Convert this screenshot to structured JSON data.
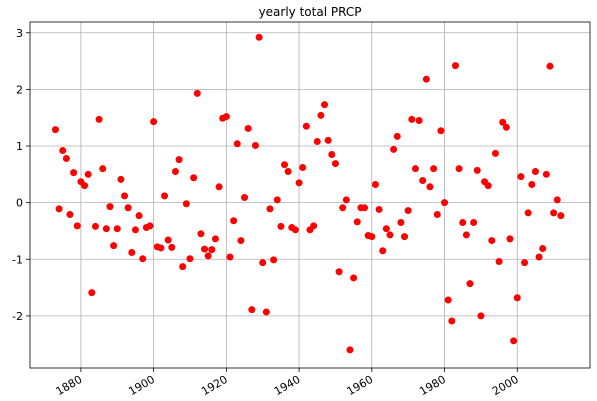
{
  "chart_data": {
    "type": "scatter",
    "title": "yearly total PRCP",
    "color": "#ff0000",
    "grid": true,
    "x": [
      1873,
      1874,
      1875,
      1876,
      1877,
      1878,
      1879,
      1880,
      1881,
      1882,
      1883,
      1884,
      1885,
      1886,
      1887,
      1888,
      1889,
      1890,
      1891,
      1892,
      1893,
      1894,
      1895,
      1896,
      1897,
      1898,
      1899,
      1900,
      1901,
      1902,
      1903,
      1904,
      1905,
      1906,
      1907,
      1908,
      1909,
      1910,
      1911,
      1912,
      1913,
      1914,
      1915,
      1916,
      1917,
      1918,
      1919,
      1920,
      1921,
      1922,
      1923,
      1924,
      1925,
      1926,
      1927,
      1928,
      1929,
      1930,
      1931,
      1932,
      1933,
      1934,
      1935,
      1936,
      1937,
      1938,
      1939,
      1940,
      1941,
      1942,
      1943,
      1944,
      1945,
      1946,
      1947,
      1948,
      1949,
      1950,
      1951,
      1952,
      1953,
      1954,
      1955,
      1956,
      1957,
      1958,
      1959,
      1960,
      1961,
      1962,
      1963,
      1964,
      1965,
      1966,
      1967,
      1968,
      1969,
      1970,
      1971,
      1972,
      1973,
      1974,
      1975,
      1976,
      1977,
      1978,
      1979,
      1980,
      1981,
      1982,
      1983,
      1984,
      1985,
      1986,
      1987,
      1988,
      1989,
      1990,
      1991,
      1992,
      1993,
      1994,
      1995,
      1996,
      1997,
      1998,
      1999,
      2000,
      2001,
      2002,
      2003,
      2004,
      2005,
      2006,
      2007,
      2008,
      2009,
      2010,
      2011,
      2012
    ],
    "values": [
      1.29,
      -0.11,
      0.92,
      0.78,
      -0.21,
      0.53,
      -0.41,
      0.37,
      0.3,
      0.5,
      -1.59,
      -0.42,
      1.47,
      0.6,
      -0.46,
      -0.07,
      -0.76,
      -0.46,
      0.41,
      0.12,
      -0.09,
      -0.88,
      -0.48,
      -0.23,
      -0.99,
      -0.44,
      -0.41,
      1.43,
      -0.78,
      -0.8,
      0.12,
      -0.66,
      -0.79,
      0.55,
      0.76,
      -1.13,
      -0.02,
      -0.99,
      0.44,
      1.93,
      -0.55,
      -0.82,
      -0.94,
      -0.83,
      -0.64,
      0.28,
      1.49,
      1.52,
      -0.96,
      -0.32,
      1.04,
      -0.67,
      0.09,
      1.31,
      -1.89,
      1.01,
      2.92,
      -1.06,
      -1.93,
      -0.11,
      -1.01,
      0.05,
      -0.42,
      0.67,
      0.55,
      -0.44,
      -0.48,
      0.35,
      0.62,
      1.35,
      -0.48,
      -0.41,
      1.08,
      1.54,
      1.73,
      1.1,
      0.85,
      0.69,
      -1.22,
      -0.09,
      0.05,
      -2.6,
      -1.33,
      -0.34,
      -0.09,
      -0.09,
      -0.58,
      -0.6,
      0.32,
      -0.12,
      -0.85,
      -0.46,
      -0.57,
      0.94,
      1.17,
      -0.35,
      -0.6,
      -0.14,
      1.47,
      0.6,
      1.45,
      0.39,
      2.18,
      0.28,
      0.6,
      -0.21,
      1.27,
      0.0,
      -1.72,
      -2.09,
      2.42,
      0.6,
      -0.35,
      -0.57,
      -1.43,
      -0.35,
      0.57,
      -2.0,
      0.37,
      0.3,
      -0.67,
      0.87,
      -1.04,
      1.42,
      1.33,
      -0.64,
      -2.44,
      -1.68,
      0.46,
      -1.06,
      -0.18,
      0.32,
      0.55,
      -0.96,
      -0.81,
      0.5,
      2.41,
      -0.18,
      0.05,
      -0.23
    ],
    "xlim": [
      1866,
      2020
    ],
    "xticks": [
      1880,
      1900,
      1920,
      1940,
      1960,
      1980,
      2000
    ],
    "ylim": [
      -2.92,
      3.19
    ],
    "yticks": [
      -2,
      -1,
      0,
      1,
      2,
      3
    ]
  }
}
